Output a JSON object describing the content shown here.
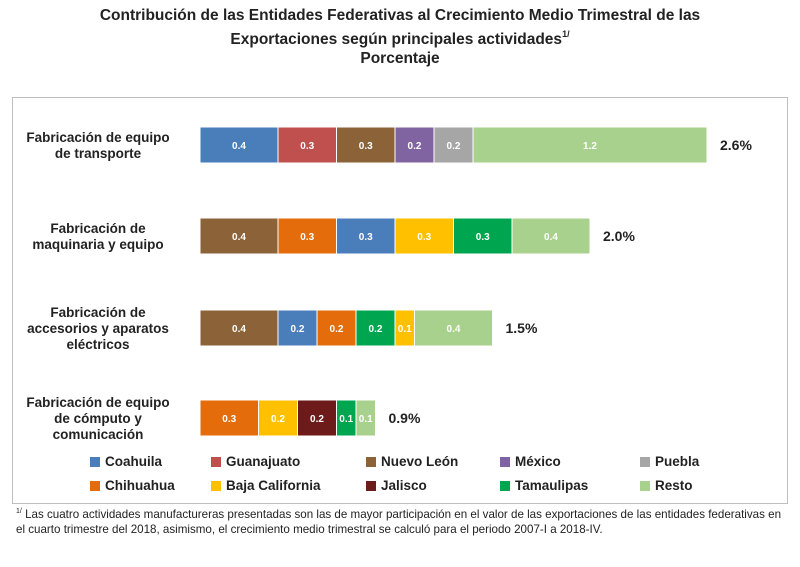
{
  "title": {
    "line1": "Contribución de las Entidades Federativas al Crecimiento Medio Trimestral de las",
    "line2": "Exportaciones según principales actividades",
    "line2_sup": "1/",
    "line3": "Porcentaje"
  },
  "footnote": {
    "marker": "1/",
    "text": "Las cuatro actividades manufactureras presentadas son las de mayor participación en el valor de las exportaciones de las entidades federativas en el cuarto trimestre del 2018, asimismo, el crecimiento medio trimestral se calculó para el periodo 2007-I a 2018-IV."
  },
  "colors": {
    "Coahuila": "#4a7ebb",
    "Guanajuato": "#c0504d",
    "Nuevo León": "#8c6239",
    "México": "#8064a2",
    "Puebla": "#a6a6a6",
    "Chihuahua": "#e46c0a",
    "Baja California": "#ffc000",
    "Jalisco": "#6d1a1a",
    "Tamaulipas": "#00a550",
    "Resto": "#a9d18e"
  },
  "chart_data": {
    "type": "bar",
    "orientation": "horizontal",
    "stacked": true,
    "grid": false,
    "legend_position": "bottom",
    "categories": [
      [
        "Fabricación de equipo",
        "de transporte"
      ],
      [
        "Fabricación de",
        "maquinaria y equipo"
      ],
      [
        "Fabricación de",
        "accesorios y aparatos",
        "eléctricos"
      ],
      [
        "Fabricación de equipo",
        "de cómputo y",
        "comunicación"
      ]
    ],
    "totals": [
      "2.6%",
      "2.0%",
      "1.5%",
      "0.9%"
    ],
    "bars": [
      [
        {
          "state": "Coahuila",
          "value": 0.4
        },
        {
          "state": "Guanajuato",
          "value": 0.3
        },
        {
          "state": "Nuevo León",
          "value": 0.3
        },
        {
          "state": "México",
          "value": 0.2
        },
        {
          "state": "Puebla",
          "value": 0.2
        },
        {
          "state": "Resto",
          "value": 1.2
        }
      ],
      [
        {
          "state": "Nuevo León",
          "value": 0.4
        },
        {
          "state": "Chihuahua",
          "value": 0.3
        },
        {
          "state": "Coahuila",
          "value": 0.3
        },
        {
          "state": "Baja California",
          "value": 0.3
        },
        {
          "state": "Tamaulipas",
          "value": 0.3
        },
        {
          "state": "Resto",
          "value": 0.4
        }
      ],
      [
        {
          "state": "Nuevo León",
          "value": 0.4
        },
        {
          "state": "Coahuila",
          "value": 0.2
        },
        {
          "state": "Chihuahua",
          "value": 0.2
        },
        {
          "state": "Tamaulipas",
          "value": 0.2
        },
        {
          "state": "Baja California",
          "value": 0.1
        },
        {
          "state": "Resto",
          "value": 0.4
        }
      ],
      [
        {
          "state": "Chihuahua",
          "value": 0.3
        },
        {
          "state": "Baja California",
          "value": 0.2
        },
        {
          "state": "Jalisco",
          "value": 0.2
        },
        {
          "state": "Tamaulipas",
          "value": 0.1
        },
        {
          "state": "Resto",
          "value": 0.1
        }
      ]
    ],
    "legend": [
      [
        "Coahuila",
        "Guanajuato",
        "Nuevo León",
        "México",
        "Puebla"
      ],
      [
        "Chihuahua",
        "Baja California",
        "Jalisco",
        "Tamaulipas",
        "Resto"
      ]
    ]
  }
}
